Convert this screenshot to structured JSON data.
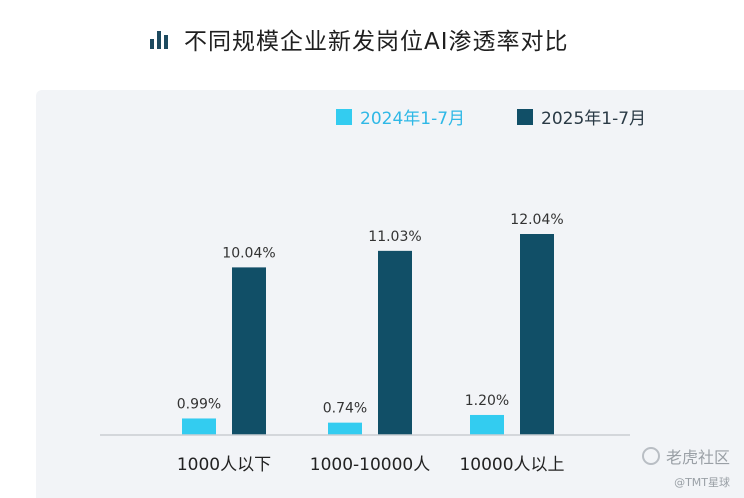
{
  "header": {
    "icon": "bar-chart-icon",
    "title": "不同规模企业新发岗位AI渗透率对比"
  },
  "colors": {
    "series_2024": "#33ccf0",
    "series_2025": "#114f67",
    "panel_bg": "#f2f4f7"
  },
  "chart_data": {
    "type": "bar",
    "categories": [
      "1000人以下",
      "1000-10000人",
      "10000人以上"
    ],
    "series": [
      {
        "name": "2024年1-7月",
        "values": [
          0.99,
          0.74,
          1.2
        ],
        "labels": [
          "0.99%",
          "0.74%",
          "1.20%"
        ]
      },
      {
        "name": "2025年1-7月",
        "values": [
          10.04,
          11.03,
          12.04
        ],
        "labels": [
          "10.04%",
          "11.03%",
          "12.04%"
        ]
      }
    ],
    "ylim": [
      0,
      12.04
    ],
    "legend": "top",
    "grid": false
  },
  "watermark": {
    "brand": "老虎社区",
    "handle": "@TMT星球"
  }
}
